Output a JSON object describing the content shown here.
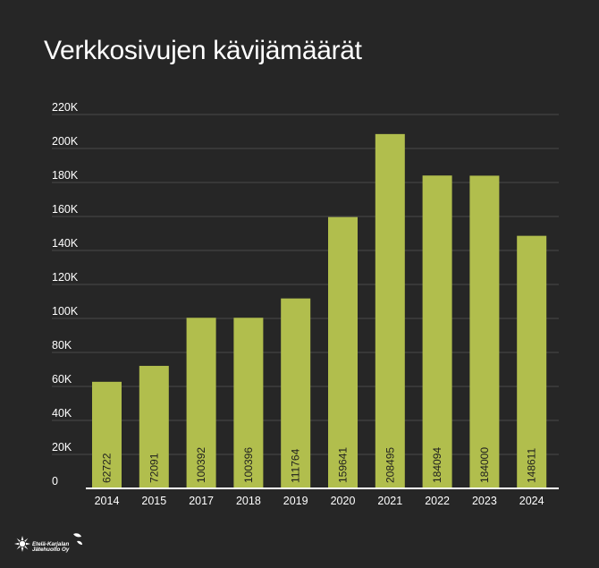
{
  "chart_data": {
    "type": "bar",
    "title": "Verkkosivujen kävijämäärät",
    "xlabel": "",
    "ylabel": "",
    "categories": [
      "2014",
      "2015",
      "2017",
      "2018",
      "2019",
      "2020",
      "2021",
      "2022",
      "2023",
      "2024"
    ],
    "values": [
      62722,
      72091,
      100392,
      100396,
      111764,
      159641,
      208495,
      184094,
      184000,
      148611
    ],
    "value_labels": [
      "62722",
      "72091",
      "100392",
      "100396",
      "111764",
      "159641",
      "208495",
      "184094",
      "184000",
      "148611"
    ],
    "ylim": [
      0,
      220000
    ],
    "yticks": [
      0,
      20000,
      40000,
      60000,
      80000,
      100000,
      120000,
      140000,
      160000,
      180000,
      200000,
      220000
    ],
    "ytick_labels": [
      "0",
      "20K",
      "40K",
      "60K",
      "80K",
      "100K",
      "120K",
      "140K",
      "160K",
      "180K",
      "200K",
      "220K"
    ],
    "grid": true,
    "legend": "none"
  },
  "colors": {
    "background": "#262626",
    "bar": "#b1be4d",
    "grid": "#4a4a4a",
    "axis": "#ffffff",
    "text": "#ffffff",
    "bar_label": "#1e1e1e"
  },
  "logo": {
    "line1": "Etelä-Karjalan",
    "line2": "Jätehuolto Oy"
  }
}
